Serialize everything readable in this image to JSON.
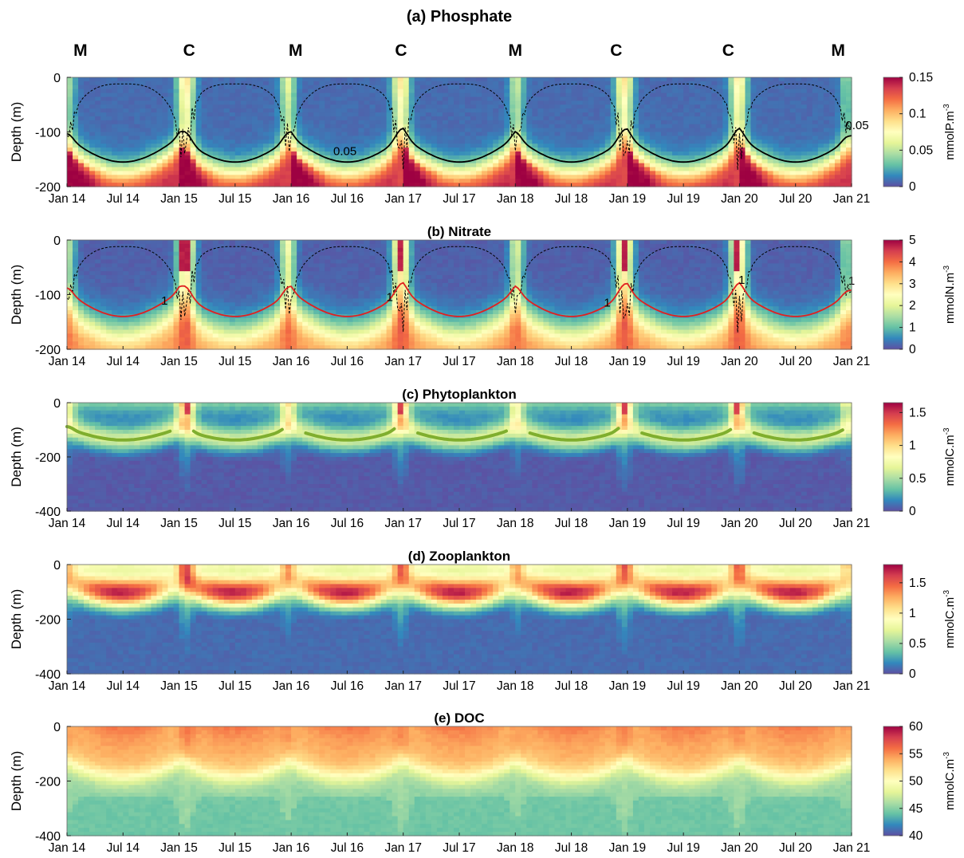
{
  "chart_data": [
    {
      "type": "heatmap",
      "id": "a",
      "title": "(a) Phosphate",
      "ylabel": "Depth (m)",
      "xlim": [
        0,
        7
      ],
      "ylim": [
        -200,
        0
      ],
      "yticks": [
        0,
        -100,
        -200
      ],
      "xticks": [
        0,
        0.5,
        1,
        1.5,
        2,
        2.5,
        3,
        3.5,
        4,
        4.5,
        5,
        5.5,
        6,
        6.5,
        7
      ],
      "xtick_labels": [
        "Jan 14",
        "Jul 14",
        "Jan 15",
        "Jul 15",
        "Jan 16",
        "Jul 16",
        "Jan 17",
        "Jul 17",
        "Jan 18",
        "Jul 18",
        "Jan 19",
        "Jul 19",
        "Jan 20",
        "Jul 20",
        "Jan 21"
      ],
      "colorbar": {
        "label": "mmolP.m",
        "exponent": "-3",
        "range": [
          0,
          0.15
        ],
        "ticks": [
          0,
          0.05,
          0.1,
          0.15
        ],
        "tick_labels": [
          "0",
          "0.05",
          "0.1",
          "0.15"
        ]
      },
      "season_labels": [
        {
          "x": 0.12,
          "text": "M"
        },
        {
          "x": 1.09,
          "text": "C"
        },
        {
          "x": 2.04,
          "text": "M"
        },
        {
          "x": 2.98,
          "text": "C"
        },
        {
          "x": 4.0,
          "text": "M"
        },
        {
          "x": 4.9,
          "text": "C"
        },
        {
          "x": 5.9,
          "text": "C"
        },
        {
          "x": 6.88,
          "text": "M"
        }
      ],
      "contour": {
        "level_label": "0.05",
        "color": "#000000",
        "label_positions": [
          [
            2.48,
            -142
          ],
          [
            7.05,
            -95
          ]
        ]
      },
      "mld_line": true
    },
    {
      "type": "heatmap",
      "id": "b",
      "title": "(b) Nitrate",
      "ylabel": "Depth (m)",
      "xlim": [
        0,
        7
      ],
      "ylim": [
        -200,
        0
      ],
      "yticks": [
        0,
        -100,
        -200
      ],
      "xticks": [
        0,
        0.5,
        1,
        1.5,
        2,
        2.5,
        3,
        3.5,
        4,
        4.5,
        5,
        5.5,
        6,
        6.5,
        7
      ],
      "xtick_labels": [
        "Jan 14",
        "Jul 14",
        "Jan 15",
        "Jul 15",
        "Jan 16",
        "Jul 16",
        "Jan 17",
        "Jul 17",
        "Jan 18",
        "Jul 18",
        "Jan 19",
        "Jul 19",
        "Jan 20",
        "Jul 20",
        "Jan 21"
      ],
      "colorbar": {
        "label": "mmolN.m",
        "exponent": "-3",
        "range": [
          0,
          5
        ],
        "ticks": [
          0,
          1,
          2,
          3,
          4,
          5
        ],
        "tick_labels": [
          "0",
          "1",
          "2",
          "3",
          "4",
          "5"
        ]
      },
      "contour": {
        "level_label": "1",
        "color": "#e02020",
        "label_positions": [
          [
            0.87,
            -118
          ],
          [
            2.88,
            -112
          ],
          [
            4.82,
            -122
          ],
          [
            6.02,
            -80
          ],
          [
            7.0,
            -82
          ]
        ]
      },
      "mld_line": true
    },
    {
      "type": "heatmap",
      "id": "c",
      "title": "(c) Phytoplankton",
      "ylabel": "Depth (m)",
      "xlim": [
        0,
        7
      ],
      "ylim": [
        -400,
        0
      ],
      "yticks": [
        0,
        -200,
        -400
      ],
      "xticks": [
        0,
        0.5,
        1,
        1.5,
        2,
        2.5,
        3,
        3.5,
        4,
        4.5,
        5,
        5.5,
        6,
        6.5,
        7
      ],
      "xtick_labels": [
        "Jan 14",
        "Jul 14",
        "Jan 15",
        "Jul 15",
        "Jan 16",
        "Jul 16",
        "Jan 17",
        "Jul 17",
        "Jan 18",
        "Jul 18",
        "Jan 19",
        "Jul 19",
        "Jan 20",
        "Jul 20",
        "Jan 21"
      ],
      "colorbar": {
        "label": "mmolC.m",
        "exponent": "-3",
        "range": [
          0,
          1.65
        ],
        "ticks": [
          0,
          0.5,
          1,
          1.5
        ],
        "tick_labels": [
          "0",
          "0.5",
          "1",
          "1.5"
        ]
      },
      "dcm_line": {
        "color": "#7fae2e"
      }
    },
    {
      "type": "heatmap",
      "id": "d",
      "title": "(d) Zooplankton",
      "ylabel": "Depth (m)",
      "xlim": [
        0,
        7
      ],
      "ylim": [
        -400,
        0
      ],
      "yticks": [
        0,
        -200,
        -400
      ],
      "xticks": [
        0,
        0.5,
        1,
        1.5,
        2,
        2.5,
        3,
        3.5,
        4,
        4.5,
        5,
        5.5,
        6,
        6.5,
        7
      ],
      "xtick_labels": [
        "Jan 14",
        "Jul 14",
        "Jan 15",
        "Jul 15",
        "Jan 16",
        "Jul 16",
        "Jan 17",
        "Jul 17",
        "Jan 18",
        "Jul 18",
        "Jan 19",
        "Jul 19",
        "Jan 20",
        "Jul 20",
        "Jan 21"
      ],
      "colorbar": {
        "label": "mmolC.m",
        "exponent": "-3",
        "range": [
          0,
          1.8
        ],
        "ticks": [
          0,
          0.5,
          1,
          1.5
        ],
        "tick_labels": [
          "0",
          "0.5",
          "1",
          "1.5"
        ]
      }
    },
    {
      "type": "heatmap",
      "id": "e",
      "title": "(e) DOC",
      "ylabel": "Depth (m)",
      "xlim": [
        0,
        7
      ],
      "ylim": [
        -400,
        0
      ],
      "yticks": [
        0,
        -200,
        -400
      ],
      "xticks": [
        0,
        0.5,
        1,
        1.5,
        2,
        2.5,
        3,
        3.5,
        4,
        4.5,
        5,
        5.5,
        6,
        6.5,
        7
      ],
      "xtick_labels": [
        "Jan 14",
        "Jul 14",
        "Jan 15",
        "Jul 15",
        "Jan 16",
        "Jul 16",
        "Jan 17",
        "Jul 17",
        "Jan 18",
        "Jul 18",
        "Jan 19",
        "Jul 19",
        "Jan 20",
        "Jul 20",
        "Jan 21"
      ],
      "colorbar": {
        "label": "mmolC.m",
        "exponent": "-3",
        "range": [
          40,
          60
        ],
        "ticks": [
          40,
          45,
          50,
          55,
          60
        ],
        "tick_labels": [
          "40",
          "45",
          "50",
          "55",
          "60"
        ]
      }
    }
  ],
  "colormap": [
    "#5e4fa2",
    "#3288bd",
    "#66c2a5",
    "#abdda4",
    "#e6f598",
    "#ffffbf",
    "#fee08b",
    "#fdae61",
    "#f46d43",
    "#d53e4f",
    "#9e0142"
  ]
}
